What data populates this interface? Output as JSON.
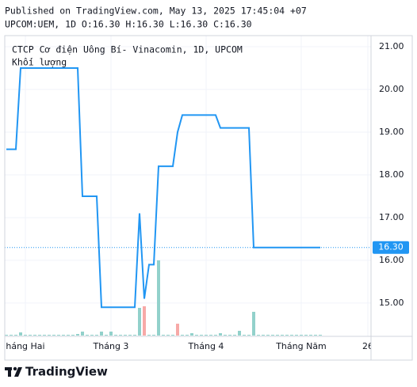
{
  "header": {
    "published": "Published on TradingView.com, May 13, 2025 17:45:04 +07",
    "symbol_line": "UPCOM:UEM, 1D O:16.30 H:16.30 L:16.30 C:16.30"
  },
  "footer": {
    "brand": "TradingView"
  },
  "chart_data": {
    "type": "line",
    "title": "CTCP Cơ điện Uông Bí- Vinacomin, 1D, UPCOM",
    "categories": [
      null,
      null,
      null,
      null,
      "háng Hai",
      null,
      null,
      null,
      null,
      null,
      null,
      null,
      null,
      null,
      null,
      null,
      null,
      null,
      null,
      null,
      null,
      null,
      "Tháng 3",
      null,
      null,
      null,
      null,
      null,
      null,
      null,
      null,
      null,
      null,
      null,
      null,
      null,
      null,
      null,
      null,
      null,
      null,
      null,
      "Tháng 4",
      null,
      null,
      null,
      null,
      null,
      null,
      null,
      null,
      null,
      null,
      null,
      null,
      null,
      null,
      null,
      null,
      null,
      null,
      null,
      "Tháng Năm",
      null,
      null,
      null,
      null,
      null,
      null,
      null,
      null,
      null,
      null,
      null,
      null,
      null,
      "26"
    ],
    "values": [
      18.6,
      18.6,
      18.6,
      20.5,
      20.5,
      20.5,
      20.5,
      20.5,
      20.5,
      20.5,
      20.5,
      20.5,
      20.5,
      20.5,
      20.5,
      20.5,
      17.5,
      17.5,
      17.5,
      17.5,
      14.9,
      14.9,
      14.9,
      14.9,
      14.9,
      14.9,
      14.9,
      14.9,
      17.1,
      15.1,
      15.9,
      15.9,
      18.2,
      18.2,
      18.2,
      18.2,
      19.0,
      19.4,
      19.4,
      19.4,
      19.4,
      19.4,
      19.4,
      19.4,
      19.4,
      19.1,
      19.1,
      19.1,
      19.1,
      19.1,
      19.1,
      19.1,
      16.3,
      16.3,
      16.3,
      16.3,
      16.3,
      16.3,
      16.3,
      16.3,
      16.3,
      16.3,
      16.3,
      16.3,
      16.3,
      16.3,
      16.3,
      null,
      null,
      null,
      null,
      null,
      null,
      null,
      null,
      null,
      null
    ],
    "color": "#2196f3",
    "volume": {
      "name": "Khối lượng",
      "values": [
        1,
        1,
        1,
        4,
        1,
        1,
        1,
        1,
        1,
        1,
        1,
        1,
        1,
        1,
        1,
        2,
        5,
        1,
        1,
        1,
        5,
        1,
        5,
        1,
        1,
        1,
        1,
        1,
        35,
        37,
        1,
        1,
        95,
        1,
        1,
        1,
        15,
        1,
        1,
        3,
        1,
        1,
        1,
        1,
        1,
        3,
        1,
        1,
        1,
        6,
        1,
        1,
        30,
        1,
        1,
        1,
        1,
        1,
        1,
        1,
        1,
        1,
        1,
        1,
        1,
        1,
        1,
        null,
        null,
        null,
        null,
        null,
        null,
        null,
        null,
        null,
        null
      ],
      "colors": [
        "#92d1cb",
        "#92d1cb",
        "#92d1cb",
        "#92d1cb",
        "#92d1cb",
        "#92d1cb",
        "#92d1cb",
        "#92d1cb",
        "#92d1cb",
        "#92d1cb",
        "#92d1cb",
        "#92d1cb",
        "#92d1cb",
        "#92d1cb",
        "#92d1cb",
        "#92d1cb",
        "#92d1cb",
        "#92d1cb",
        "#92d1cb",
        "#92d1cb",
        "#92d1cb",
        "#92d1cb",
        "#92d1cb",
        "#92d1cb",
        "#92d1cb",
        "#92d1cb",
        "#92d1cb",
        "#92d1cb",
        "#92d1cb",
        "#f7a9a7",
        "#92d1cb",
        "#92d1cb",
        "#92d1cb",
        "#92d1cb",
        "#92d1cb",
        "#92d1cb",
        "#f7a9a7",
        "#92d1cb",
        "#92d1cb",
        "#92d1cb",
        "#92d1cb",
        "#92d1cb",
        "#92d1cb",
        "#92d1cb",
        "#92d1cb",
        "#92d1cb",
        "#92d1cb",
        "#92d1cb",
        "#92d1cb",
        "#92d1cb",
        "#92d1cb",
        "#92d1cb",
        "#92d1cb",
        "#92d1cb",
        "#92d1cb",
        "#92d1cb",
        "#92d1cb",
        "#92d1cb",
        "#92d1cb",
        "#92d1cb",
        "#92d1cb",
        "#92d1cb",
        "#92d1cb",
        "#92d1cb",
        "#92d1cb",
        "#92d1cb",
        "#92d1cb",
        null,
        null,
        null,
        null,
        null,
        null,
        null,
        null,
        null,
        null
      ]
    },
    "last_value": {
      "value": 16.3,
      "label": "16.30"
    },
    "ylim": [
      14.22,
      21.26
    ],
    "yticks": [
      {
        "value": 15,
        "label": "15.00"
      },
      {
        "value": 16,
        "label": "16.00"
      },
      {
        "value": 17,
        "label": "17.00"
      },
      {
        "value": 18,
        "label": "18.00"
      },
      {
        "value": 19,
        "label": "19.00"
      },
      {
        "value": 20,
        "label": "20.00"
      },
      {
        "value": 21,
        "label": "21.00"
      }
    ],
    "grid": true
  }
}
